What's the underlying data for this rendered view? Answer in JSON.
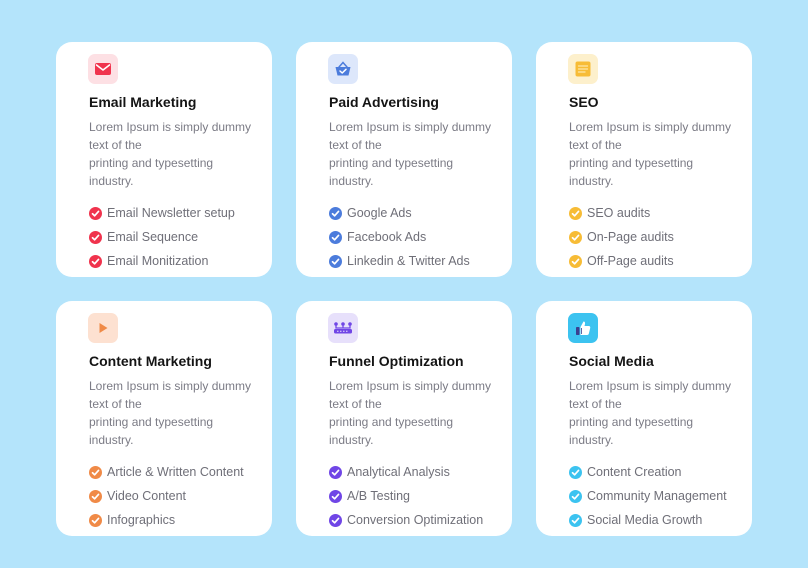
{
  "cards": [
    {
      "title": "Email Marketing",
      "icon": "envelope-icon",
      "accent": "#f0334d",
      "icon_bg": "#fde0e4",
      "desc": [
        "Lorem Ipsum is simply dummy",
        "text of the",
        "printing and typesetting",
        "industry."
      ],
      "features": [
        "Email Newsletter setup",
        "Email Sequence",
        "Email Monitization"
      ]
    },
    {
      "title": "Paid Advertising",
      "icon": "shopping-basket-icon",
      "accent": "#4c7cdc",
      "icon_bg": "#dde7fb",
      "desc": [
        "Lorem Ipsum is simply dummy",
        "text of the",
        "printing and typesetting",
        "industry."
      ],
      "features": [
        "Google Ads",
        "Facebook Ads",
        "Linkedin & Twitter Ads"
      ]
    },
    {
      "title": "SEO",
      "icon": "document-icon",
      "accent": "#f7bc36",
      "icon_bg": "#fdf0cc",
      "desc": [
        "Lorem Ipsum is simply dummy",
        "text of the",
        "printing and typesetting",
        "industry."
      ],
      "features": [
        "SEO audits",
        "On-Page audits",
        "Off-Page audits"
      ]
    },
    {
      "title": "Content Marketing",
      "icon": "play-icon",
      "accent": "#f08a47",
      "icon_bg": "#fde1d1",
      "desc": [
        "Lorem Ipsum is simply dummy",
        "text of the",
        "printing and typesetting",
        "industry."
      ],
      "features": [
        "Article & Written Content",
        "Video Content",
        "Infographics"
      ]
    },
    {
      "title": "Funnel Optimization",
      "icon": "funnel-network-icon",
      "accent": "#7046e6",
      "icon_bg": "#e7e0fb",
      "desc": [
        "Lorem Ipsum is simply dummy",
        "text of the",
        "printing and typesetting",
        "industry."
      ],
      "features": [
        "Analytical Analysis",
        "A/B Testing",
        "Conversion Optimization"
      ]
    },
    {
      "title": "Social Media",
      "icon": "thumbs-up-icon",
      "accent": "#3cc3f0",
      "icon_bg": "#3cc3f0",
      "desc": [
        "Lorem Ipsum is simply dummy",
        "text of the",
        "printing and typesetting",
        "industry."
      ],
      "features": [
        "Content Creation",
        "Community Management",
        "Social Media Growth"
      ]
    }
  ]
}
